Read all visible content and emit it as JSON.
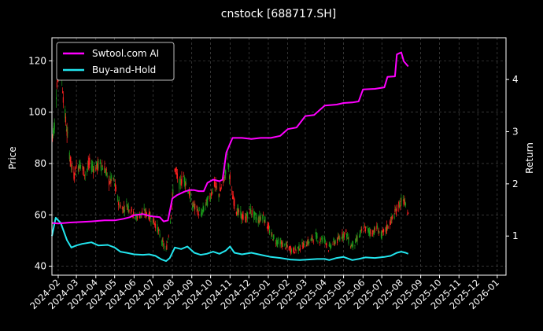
{
  "chart_data": {
    "type": "line",
    "title": "cnstock [688717.SH]",
    "ylabel": "Price",
    "ylabel_right": "Return",
    "ylim": [
      36.5,
      129
    ],
    "ylim_right": [
      0.25,
      4.8
    ],
    "xlim": [
      "2024-01-22",
      "2026-01-15"
    ],
    "grid": true,
    "legend_position": "top-left",
    "x_ticks": [
      "2024-02",
      "2024-03",
      "2024-04",
      "2024-05",
      "2024-06",
      "2024-07",
      "2024-08",
      "2024-09",
      "2024-10",
      "2024-11",
      "2024-12",
      "2025-01",
      "2025-02",
      "2025-03",
      "2025-04",
      "2025-05",
      "2025-06",
      "2025-07",
      "2025-08",
      "2025-09",
      "2025-10",
      "2025-11",
      "2025-12",
      "2026-01"
    ],
    "y_ticks": [
      40,
      60,
      80,
      100,
      120
    ],
    "y_ticks_right": [
      1,
      2,
      3,
      4
    ],
    "colors": {
      "up": "#ff2020",
      "down": "#1a9a1a",
      "ai": "#ff00ff",
      "bh": "#22e5ee",
      "background": "#000000"
    },
    "series": [
      {
        "name": "Swtool.com AI",
        "axis": "right",
        "points": [
          [
            "2024-01-22",
            1.25
          ],
          [
            "2024-02-01",
            1.24
          ],
          [
            "2024-02-20",
            1.26
          ],
          [
            "2024-03-10",
            1.27
          ],
          [
            "2024-03-25",
            1.28
          ],
          [
            "2024-04-15",
            1.3
          ],
          [
            "2024-05-01",
            1.3
          ],
          [
            "2024-05-15",
            1.33
          ],
          [
            "2024-05-25",
            1.36
          ],
          [
            "2024-06-01",
            1.4
          ],
          [
            "2024-06-15",
            1.42
          ],
          [
            "2024-06-28",
            1.38
          ],
          [
            "2024-07-12",
            1.36
          ],
          [
            "2024-07-18",
            1.28
          ],
          [
            "2024-07-25",
            1.3
          ],
          [
            "2024-08-01",
            1.72
          ],
          [
            "2024-08-08",
            1.78
          ],
          [
            "2024-08-20",
            1.85
          ],
          [
            "2024-08-28",
            1.88
          ],
          [
            "2024-09-05",
            1.88
          ],
          [
            "2024-09-12",
            1.86
          ],
          [
            "2024-09-20",
            1.86
          ],
          [
            "2024-09-26",
            2.02
          ],
          [
            "2024-10-05",
            2.08
          ],
          [
            "2024-10-15",
            2.05
          ],
          [
            "2024-10-20",
            2.08
          ],
          [
            "2024-10-26",
            2.6
          ],
          [
            "2024-11-05",
            2.88
          ],
          [
            "2024-11-20",
            2.88
          ],
          [
            "2024-12-05",
            2.86
          ],
          [
            "2024-12-20",
            2.88
          ],
          [
            "2025-01-05",
            2.88
          ],
          [
            "2025-01-20",
            2.92
          ],
          [
            "2025-02-01",
            3.05
          ],
          [
            "2025-02-15",
            3.08
          ],
          [
            "2025-03-01",
            3.3
          ],
          [
            "2025-03-15",
            3.32
          ],
          [
            "2025-04-01",
            3.5
          ],
          [
            "2025-04-20",
            3.52
          ],
          [
            "2025-05-01",
            3.55
          ],
          [
            "2025-05-15",
            3.56
          ],
          [
            "2025-05-25",
            3.58
          ],
          [
            "2025-06-01",
            3.81
          ],
          [
            "2025-06-20",
            3.82
          ],
          [
            "2025-07-05",
            3.85
          ],
          [
            "2025-07-10",
            4.05
          ],
          [
            "2025-07-22",
            4.06
          ],
          [
            "2025-07-25",
            4.48
          ],
          [
            "2025-08-01",
            4.52
          ],
          [
            "2025-08-05",
            4.35
          ],
          [
            "2025-08-12",
            4.25
          ]
        ]
      },
      {
        "name": "Buy-and-Hold",
        "axis": "right",
        "points": [
          [
            "2024-01-22",
            1.0
          ],
          [
            "2024-01-28",
            1.35
          ],
          [
            "2024-02-05",
            1.25
          ],
          [
            "2024-02-15",
            0.92
          ],
          [
            "2024-02-22",
            0.78
          ],
          [
            "2024-03-01",
            0.82
          ],
          [
            "2024-03-10",
            0.85
          ],
          [
            "2024-03-25",
            0.88
          ],
          [
            "2024-04-05",
            0.82
          ],
          [
            "2024-04-20",
            0.83
          ],
          [
            "2024-05-01",
            0.78
          ],
          [
            "2024-05-10",
            0.7
          ],
          [
            "2024-05-20",
            0.68
          ],
          [
            "2024-06-01",
            0.65
          ],
          [
            "2024-06-15",
            0.64
          ],
          [
            "2024-06-25",
            0.65
          ],
          [
            "2024-07-05",
            0.62
          ],
          [
            "2024-07-15",
            0.55
          ],
          [
            "2024-07-22",
            0.52
          ],
          [
            "2024-07-28",
            0.58
          ],
          [
            "2024-08-05",
            0.78
          ],
          [
            "2024-08-15",
            0.75
          ],
          [
            "2024-08-25",
            0.8
          ],
          [
            "2024-09-05",
            0.68
          ],
          [
            "2024-09-15",
            0.64
          ],
          [
            "2024-09-25",
            0.66
          ],
          [
            "2024-10-05",
            0.7
          ],
          [
            "2024-10-15",
            0.66
          ],
          [
            "2024-10-25",
            0.72
          ],
          [
            "2024-11-01",
            0.8
          ],
          [
            "2024-11-08",
            0.68
          ],
          [
            "2024-11-20",
            0.65
          ],
          [
            "2024-12-05",
            0.68
          ],
          [
            "2024-12-20",
            0.64
          ],
          [
            "2025-01-05",
            0.6
          ],
          [
            "2025-01-20",
            0.58
          ],
          [
            "2025-02-05",
            0.55
          ],
          [
            "2025-02-20",
            0.54
          ],
          [
            "2025-03-05",
            0.55
          ],
          [
            "2025-03-20",
            0.56
          ],
          [
            "2025-04-01",
            0.56
          ],
          [
            "2025-04-08",
            0.54
          ],
          [
            "2025-04-20",
            0.58
          ],
          [
            "2025-05-01",
            0.6
          ],
          [
            "2025-05-15",
            0.54
          ],
          [
            "2025-05-25",
            0.56
          ],
          [
            "2025-06-05",
            0.59
          ],
          [
            "2025-06-20",
            0.58
          ],
          [
            "2025-07-05",
            0.6
          ],
          [
            "2025-07-15",
            0.62
          ],
          [
            "2025-07-25",
            0.68
          ],
          [
            "2025-08-01",
            0.7
          ],
          [
            "2025-08-08",
            0.68
          ],
          [
            "2025-08-12",
            0.66
          ]
        ]
      },
      {
        "name": "",
        "type": "candlestick",
        "axis": "left",
        "points": [
          [
            "2024-01-22",
            90
          ],
          [
            "2024-01-26",
            95
          ],
          [
            "2024-01-30",
            112
          ],
          [
            "2024-02-05",
            120
          ],
          [
            "2024-02-10",
            103
          ],
          [
            "2024-02-15",
            92
          ],
          [
            "2024-02-20",
            82
          ],
          [
            "2024-02-25",
            75
          ],
          [
            "2024-03-01",
            78
          ],
          [
            "2024-03-07",
            80
          ],
          [
            "2024-03-15",
            76
          ],
          [
            "2024-03-22",
            80
          ],
          [
            "2024-03-30",
            78
          ],
          [
            "2024-04-07",
            80
          ],
          [
            "2024-04-15",
            78
          ],
          [
            "2024-04-22",
            73
          ],
          [
            "2024-04-29",
            74
          ],
          [
            "2024-05-06",
            66
          ],
          [
            "2024-05-13",
            62
          ],
          [
            "2024-05-20",
            64
          ],
          [
            "2024-05-27",
            62
          ],
          [
            "2024-06-03",
            59
          ],
          [
            "2024-06-10",
            60
          ],
          [
            "2024-06-17",
            61
          ],
          [
            "2024-06-24",
            60
          ],
          [
            "2024-07-01",
            58
          ],
          [
            "2024-07-08",
            55
          ],
          [
            "2024-07-15",
            50
          ],
          [
            "2024-07-22",
            46
          ],
          [
            "2024-07-29",
            58
          ],
          [
            "2024-08-05",
            78
          ],
          [
            "2024-08-12",
            72
          ],
          [
            "2024-08-19",
            75
          ],
          [
            "2024-08-26",
            70
          ],
          [
            "2024-09-02",
            64
          ],
          [
            "2024-09-09",
            62
          ],
          [
            "2024-09-16",
            60
          ],
          [
            "2024-09-23",
            64
          ],
          [
            "2024-09-30",
            67
          ],
          [
            "2024-10-07",
            72
          ],
          [
            "2024-10-14",
            68
          ],
          [
            "2024-10-21",
            72
          ],
          [
            "2024-10-28",
            82
          ],
          [
            "2024-11-04",
            68
          ],
          [
            "2024-11-11",
            62
          ],
          [
            "2024-11-18",
            60
          ],
          [
            "2024-11-25",
            58
          ],
          [
            "2024-12-02",
            62
          ],
          [
            "2024-12-09",
            60
          ],
          [
            "2024-12-16",
            58
          ],
          [
            "2024-12-23",
            60
          ],
          [
            "2024-12-30",
            56
          ],
          [
            "2025-01-06",
            52
          ],
          [
            "2025-01-13",
            50
          ],
          [
            "2025-01-20",
            49
          ],
          [
            "2025-01-27",
            48
          ],
          [
            "2025-02-03",
            47
          ],
          [
            "2025-02-10",
            46
          ],
          [
            "2025-02-17",
            47
          ],
          [
            "2025-02-24",
            48
          ],
          [
            "2025-03-03",
            49
          ],
          [
            "2025-03-10",
            50
          ],
          [
            "2025-03-17",
            52
          ],
          [
            "2025-03-24",
            50
          ],
          [
            "2025-03-31",
            51
          ],
          [
            "2025-04-07",
            47
          ],
          [
            "2025-04-14",
            49
          ],
          [
            "2025-04-21",
            50
          ],
          [
            "2025-04-28",
            52
          ],
          [
            "2025-05-05",
            53
          ],
          [
            "2025-05-12",
            48
          ],
          [
            "2025-05-19",
            49
          ],
          [
            "2025-05-26",
            52
          ],
          [
            "2025-06-02",
            55
          ],
          [
            "2025-06-09",
            54
          ],
          [
            "2025-06-16",
            53
          ],
          [
            "2025-06-23",
            55
          ],
          [
            "2025-06-30",
            52
          ],
          [
            "2025-07-07",
            54
          ],
          [
            "2025-07-14",
            57
          ],
          [
            "2025-07-21",
            60
          ],
          [
            "2025-07-28",
            64
          ],
          [
            "2025-08-04",
            66
          ],
          [
            "2025-08-08",
            63
          ],
          [
            "2025-08-12",
            61
          ]
        ]
      }
    ]
  }
}
